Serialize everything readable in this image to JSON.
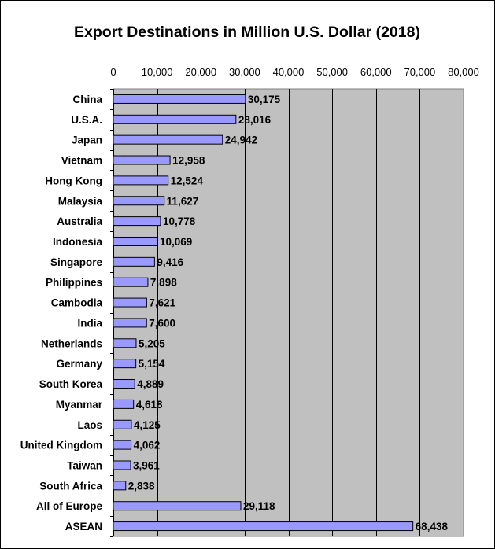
{
  "chart_data": {
    "type": "bar",
    "orientation": "horizontal",
    "title": "Export Destinations in Million U.S. Dollar (2018)",
    "xlabel": "",
    "ylabel": "",
    "xlim": [
      0,
      80000
    ],
    "ticks": [
      0,
      10000,
      20000,
      30000,
      40000,
      50000,
      60000,
      70000,
      80000
    ],
    "tick_labels": [
      "0",
      "10,000",
      "20,000",
      "30,000",
      "40,000",
      "50,000",
      "60,000",
      "70,000",
      "80,000"
    ],
    "axis_position": "top",
    "grid": true,
    "plot_background": "#c0c0c0",
    "bar_color": "#9999ff",
    "categories": [
      "China",
      "U.S.A.",
      "Japan",
      "Vietnam",
      "Hong Kong",
      "Malaysia",
      "Australia",
      "Indonesia",
      "Singapore",
      "Philippines",
      "Cambodia",
      "India",
      "Netherlands",
      "Germany",
      "South Korea",
      "Myanmar",
      "Laos",
      "United Kingdom",
      "Taiwan",
      "South Africa",
      "All of Europe",
      "ASEAN"
    ],
    "values": [
      30175,
      28016,
      24942,
      12958,
      12524,
      11627,
      10778,
      10069,
      9416,
      7898,
      7621,
      7600,
      5205,
      5154,
      4889,
      4618,
      4125,
      4062,
      3961,
      2838,
      29118,
      68438
    ],
    "value_labels": [
      "30,175",
      "28,016",
      "24,942",
      "12,958",
      "12,524",
      "11,627",
      "10,778",
      "10,069",
      "9,416",
      "7,898",
      "7,621",
      "7,600",
      "5,205",
      "5,154",
      "4,889",
      "4,618",
      "4,125",
      "4,062",
      "3,961",
      "2,838",
      "29,118",
      "68,438"
    ]
  }
}
